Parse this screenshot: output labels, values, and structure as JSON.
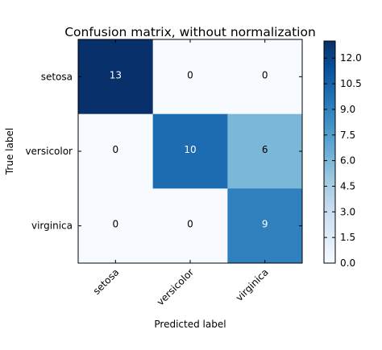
{
  "chart_data": {
    "type": "heatmap",
    "title": "Confusion matrix, without normalization",
    "xlabel": "Predicted label",
    "ylabel": "True label",
    "x_categories": [
      "setosa",
      "versicolor",
      "virginica"
    ],
    "y_categories": [
      "setosa",
      "versicolor",
      "virginica"
    ],
    "values": [
      [
        13,
        0,
        0
      ],
      [
        0,
        10,
        6
      ],
      [
        0,
        0,
        9
      ]
    ],
    "colormap": "Blues",
    "color_low": "#f7fbff",
    "color_high": "#08306b",
    "colorbar": {
      "range": [
        0,
        13
      ],
      "ticks": [
        "0.0",
        "1.5",
        "3.0",
        "4.5",
        "6.0",
        "7.5",
        "9.0",
        "10.5",
        "12.0"
      ]
    },
    "grid": false
  }
}
